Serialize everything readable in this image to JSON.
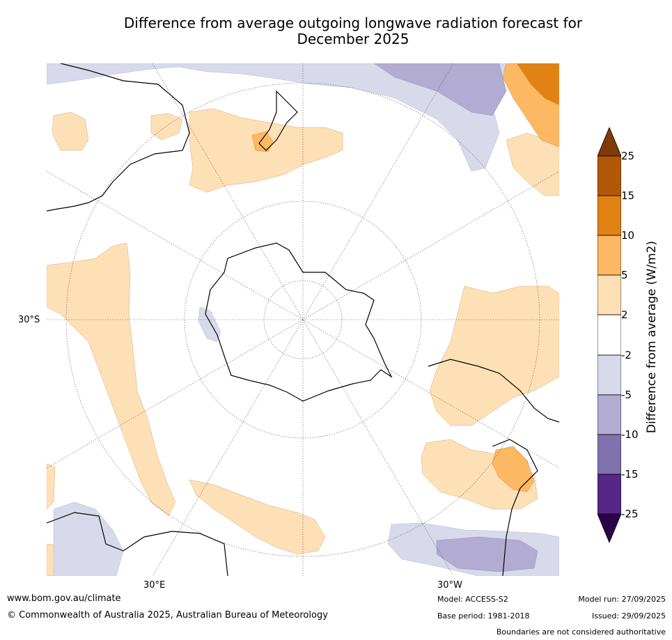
{
  "title_line1": "Difference from average outgoing longwave radiation forecast for",
  "title_line2": "December 2025",
  "map": {
    "lat_label": "30°S",
    "lon_label_east": "30°E",
    "lon_label_west": "30°W"
  },
  "colorbar": {
    "label": "Difference from average (W/m2)",
    "ticks": [
      "25",
      "15",
      "10",
      "5",
      "2",
      "-2",
      "-5",
      "-10",
      "-15",
      "-25"
    ],
    "colors": {
      "above_25": "#7f3b08",
      "15_to_25": "#b35806",
      "10_to_15": "#e08214",
      "5_to_10": "#fdb863",
      "2_to_5": "#fee0b6",
      "-2_to_2": "#ffffff",
      "-5_to_-2": "#d8daeb",
      "-10_to_-5": "#b2abd2",
      "-15_to_-10": "#8073ac",
      "-25_to_-15": "#542788",
      "below_-25": "#2d004b"
    }
  },
  "footer": {
    "website": "www.bom.gov.au/climate",
    "copyright": "© Commonwealth of Australia 2025, Australian Bureau of Meteorology",
    "model": "Model: ACCESS-S2",
    "base_period": "Base period: 1981-2018",
    "model_run": "Model run: 27/09/2025",
    "issued": "Issued: 29/09/2025",
    "disclaimer": "Boundaries are not considered authoritative"
  }
}
